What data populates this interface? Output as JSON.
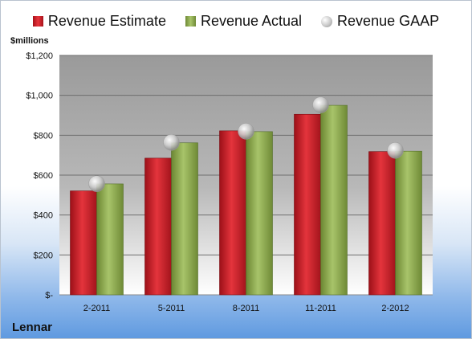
{
  "chart_data": {
    "type": "bar",
    "unit_label": "$millions",
    "company": "Lennar",
    "categories": [
      "2-2011",
      "5-2011",
      "8-2011",
      "11-2011",
      "2-2012"
    ],
    "series": [
      {
        "name": "Revenue Estimate",
        "kind": "bar",
        "color": "#d42a32",
        "values": [
          521,
          685,
          822,
          905,
          718
        ]
      },
      {
        "name": "Revenue Actual",
        "kind": "bar",
        "color": "#8fae4e",
        "values": [
          556,
          762,
          818,
          950,
          720
        ]
      },
      {
        "name": "Revenue GAAP",
        "kind": "marker",
        "color": "#c8c8c8",
        "values": [
          557,
          764,
          820,
          952,
          724
        ]
      }
    ],
    "yticks": [
      0,
      200,
      400,
      600,
      800,
      1000,
      1200
    ],
    "ytick_labels": [
      "$-",
      "$200",
      "$400",
      "$600",
      "$800",
      "$1,000",
      "$1,200"
    ],
    "ylim": [
      0,
      1200
    ],
    "grid": true,
    "legend_position": "top"
  },
  "colors": {
    "plot_top": "#9a9a9a",
    "plot_bottom": "#ffffff",
    "gridline": "#6e6e6e"
  }
}
